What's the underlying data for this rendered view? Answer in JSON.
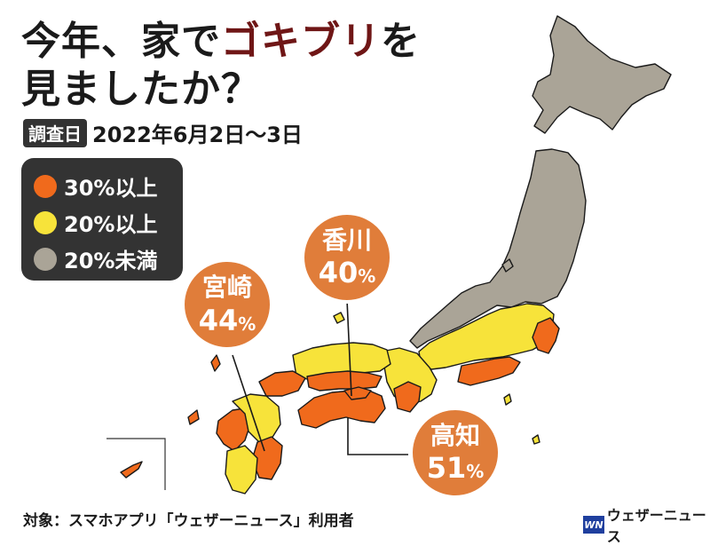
{
  "title": {
    "part1": "今年、家で",
    "highlight": "ゴキブリ",
    "part2": "を",
    "line2": "見ましたか？"
  },
  "survey": {
    "badge": "調査日",
    "date": "2022年6月2日〜3日"
  },
  "legend": [
    {
      "label": "30%以上",
      "color": "#f06a1c"
    },
    {
      "label": "20%以上",
      "color": "#f7e33a"
    },
    {
      "label": "20%未満",
      "color": "#aaa497"
    }
  ],
  "callouts": [
    {
      "name": "香川",
      "value": "40",
      "unit": "%",
      "color": "#e07d3a"
    },
    {
      "name": "宮崎",
      "value": "44",
      "unit": "%",
      "color": "#e07d3a"
    },
    {
      "name": "高知",
      "value": "51",
      "unit": "%",
      "color": "#e07d3a"
    }
  ],
  "footer": "対象：スマホアプリ「ウェザーニュース」利用者",
  "logo": {
    "mark": "WN",
    "name": "ウェザーニュース"
  },
  "colors": {
    "gray_region": "#aaa497",
    "border": "#1a1a1a"
  }
}
